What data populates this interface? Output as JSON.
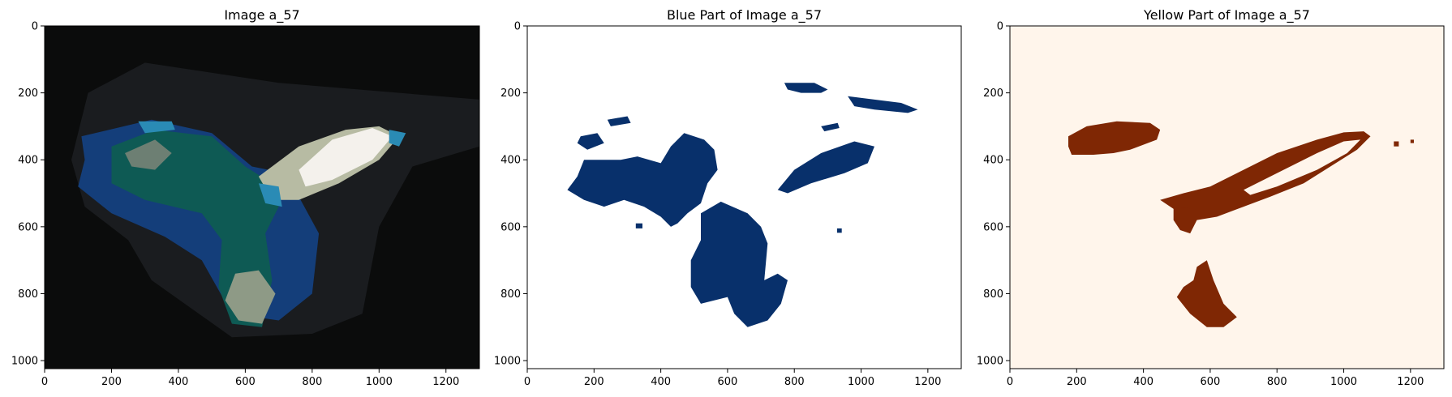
{
  "chart_data": [
    {
      "type": "heatmap",
      "title": "Image a_57",
      "xlim": [
        0,
        1300
      ],
      "ylim": [
        1024,
        0
      ],
      "xticks": [
        0,
        200,
        400,
        600,
        800,
        1000,
        1200
      ],
      "yticks": [
        0,
        200,
        400,
        600,
        800,
        1000
      ],
      "background": "#0b0c0c",
      "regions": [
        {
          "name": "shadow",
          "color": "#1a1c1f",
          "points": [
            [
              130,
              200
            ],
            [
              300,
              110
            ],
            [
              700,
              170
            ],
            [
              1300,
              220
            ],
            [
              1300,
              360
            ],
            [
              1100,
              420
            ],
            [
              1000,
              600
            ],
            [
              950,
              860
            ],
            [
              800,
              920
            ],
            [
              560,
              930
            ],
            [
              320,
              760
            ],
            [
              250,
              640
            ],
            [
              120,
              540
            ],
            [
              80,
              400
            ]
          ]
        },
        {
          "name": "blue",
          "color": "#143e7a",
          "points": [
            [
              110,
              330
            ],
            [
              320,
              280
            ],
            [
              500,
              320
            ],
            [
              620,
              420
            ],
            [
              720,
              440
            ],
            [
              760,
              510
            ],
            [
              820,
              620
            ],
            [
              800,
              800
            ],
            [
              700,
              880
            ],
            [
              560,
              860
            ],
            [
              470,
              700
            ],
            [
              360,
              630
            ],
            [
              200,
              560
            ],
            [
              100,
              480
            ],
            [
              120,
              400
            ]
          ]
        },
        {
          "name": "green-body",
          "color": "#0e5a54",
          "points": [
            [
              200,
              360
            ],
            [
              330,
              310
            ],
            [
              500,
              330
            ],
            [
              600,
              420
            ],
            [
              680,
              470
            ],
            [
              700,
              540
            ],
            [
              660,
              620
            ],
            [
              680,
              760
            ],
            [
              650,
              900
            ],
            [
              560,
              890
            ],
            [
              520,
              780
            ],
            [
              530,
              640
            ],
            [
              470,
              560
            ],
            [
              300,
              520
            ],
            [
              200,
              470
            ]
          ]
        },
        {
          "name": "gray-patch",
          "color": "#6d7f73",
          "points": [
            [
              240,
              380
            ],
            [
              330,
              340
            ],
            [
              380,
              380
            ],
            [
              330,
              430
            ],
            [
              260,
              420
            ]
          ]
        },
        {
          "name": "tan-lower",
          "color": "#8e9a86",
          "points": [
            [
              570,
              740
            ],
            [
              640,
              730
            ],
            [
              690,
              800
            ],
            [
              650,
              890
            ],
            [
              580,
              880
            ],
            [
              540,
              820
            ]
          ]
        },
        {
          "name": "wing-tan",
          "color": "#b7bba3",
          "points": [
            [
              640,
              450
            ],
            [
              760,
              360
            ],
            [
              900,
              310
            ],
            [
              1000,
              300
            ],
            [
              1060,
              330
            ],
            [
              1000,
              400
            ],
            [
              880,
              470
            ],
            [
              760,
              520
            ],
            [
              680,
              520
            ]
          ]
        },
        {
          "name": "wing-white",
          "color": "#f4f1ec",
          "points": [
            [
              760,
              430
            ],
            [
              860,
              340
            ],
            [
              980,
              305
            ],
            [
              1040,
              330
            ],
            [
              980,
              400
            ],
            [
              860,
              460
            ],
            [
              780,
              480
            ]
          ]
        },
        {
          "name": "cyan-tip",
          "color": "#2a8bb5",
          "points": [
            [
              1030,
              310
            ],
            [
              1080,
              320
            ],
            [
              1060,
              360
            ],
            [
              1030,
              350
            ]
          ]
        },
        {
          "name": "cyan-shoulder",
          "color": "#2a8bb5",
          "points": [
            [
              640,
              470
            ],
            [
              700,
              480
            ],
            [
              710,
              540
            ],
            [
              660,
              530
            ]
          ]
        },
        {
          "name": "cyan-top",
          "color": "#2a8bb5",
          "points": [
            [
              280,
              285
            ],
            [
              380,
              285
            ],
            [
              390,
              310
            ],
            [
              300,
              320
            ]
          ]
        }
      ]
    },
    {
      "type": "heatmap",
      "title": "Blue Part of Image a_57",
      "xlim": [
        0,
        1300
      ],
      "ylim": [
        1024,
        0
      ],
      "xticks": [
        0,
        200,
        400,
        600,
        800,
        1000,
        1200
      ],
      "yticks": [
        0,
        200,
        400,
        600,
        800,
        1000
      ],
      "background": "#ffffff",
      "regions": [
        {
          "name": "left-mass",
          "color": "#08306b",
          "points": [
            [
              170,
              400
            ],
            [
              280,
              400
            ],
            [
              330,
              390
            ],
            [
              400,
              410
            ],
            [
              430,
              360
            ],
            [
              470,
              320
            ],
            [
              530,
              340
            ],
            [
              560,
              370
            ],
            [
              570,
              430
            ],
            [
              540,
              470
            ],
            [
              520,
              530
            ],
            [
              480,
              560
            ],
            [
              450,
              590
            ],
            [
              430,
              600
            ],
            [
              400,
              570
            ],
            [
              350,
              540
            ],
            [
              290,
              520
            ],
            [
              230,
              540
            ],
            [
              170,
              520
            ],
            [
              120,
              490
            ],
            [
              150,
              450
            ]
          ]
        },
        {
          "name": "left-small",
          "color": "#08306b",
          "points": [
            [
              160,
              330
            ],
            [
              210,
              320
            ],
            [
              230,
              350
            ],
            [
              180,
              370
            ],
            [
              150,
              350
            ]
          ]
        },
        {
          "name": "top-speck",
          "color": "#08306b",
          "points": [
            [
              240,
              280
            ],
            [
              300,
              270
            ],
            [
              310,
              290
            ],
            [
              250,
              300
            ]
          ]
        },
        {
          "name": "center-mass",
          "color": "#08306b",
          "points": [
            [
              520,
              560
            ],
            [
              580,
              525
            ],
            [
              660,
              560
            ],
            [
              700,
              600
            ],
            [
              720,
              650
            ],
            [
              710,
              760
            ],
            [
              750,
              740
            ],
            [
              780,
              760
            ],
            [
              760,
              830
            ],
            [
              720,
              880
            ],
            [
              660,
              900
            ],
            [
              620,
              860
            ],
            [
              600,
              810
            ],
            [
              520,
              830
            ],
            [
              490,
              780
            ],
            [
              490,
              700
            ],
            [
              520,
              640
            ]
          ]
        },
        {
          "name": "wing-band",
          "color": "#08306b",
          "points": [
            [
              750,
              490
            ],
            [
              800,
              430
            ],
            [
              880,
              380
            ],
            [
              980,
              345
            ],
            [
              1040,
              360
            ],
            [
              1020,
              410
            ],
            [
              950,
              440
            ],
            [
              850,
              470
            ],
            [
              780,
              500
            ]
          ]
        },
        {
          "name": "upper-right",
          "color": "#08306b",
          "points": [
            [
              960,
              210
            ],
            [
              1040,
              220
            ],
            [
              1120,
              230
            ],
            [
              1170,
              250
            ],
            [
              1140,
              260
            ],
            [
              1040,
              250
            ],
            [
              980,
              240
            ]
          ]
        },
        {
          "name": "upper-middle",
          "color": "#08306b",
          "points": [
            [
              770,
              170
            ],
            [
              860,
              170
            ],
            [
              900,
              190
            ],
            [
              880,
              200
            ],
            [
              820,
              200
            ],
            [
              780,
              190
            ]
          ]
        },
        {
          "name": "mid-speck",
          "color": "#08306b",
          "points": [
            [
              880,
              300
            ],
            [
              930,
              290
            ],
            [
              935,
              305
            ],
            [
              890,
              315
            ]
          ]
        },
        {
          "name": "dot-a",
          "color": "#08306b",
          "points": [
            [
              325,
              590
            ],
            [
              345,
              590
            ],
            [
              345,
              605
            ],
            [
              325,
              605
            ]
          ]
        },
        {
          "name": "dot-b",
          "color": "#08306b",
          "points": [
            [
              928,
              605
            ],
            [
              942,
              605
            ],
            [
              942,
              618
            ],
            [
              928,
              618
            ]
          ]
        }
      ]
    },
    {
      "type": "heatmap",
      "title": "Yellow Part of Image a_57",
      "xlim": [
        0,
        1300
      ],
      "ylim": [
        1024,
        0
      ],
      "xticks": [
        0,
        200,
        400,
        600,
        800,
        1000,
        1200
      ],
      "yticks": [
        0,
        200,
        400,
        600,
        800,
        1000
      ],
      "background": "#fff5eb",
      "regions": [
        {
          "name": "left-blob",
          "color": "#7f2704",
          "points": [
            [
              175,
              330
            ],
            [
              230,
              300
            ],
            [
              320,
              285
            ],
            [
              420,
              290
            ],
            [
              450,
              310
            ],
            [
              440,
              340
            ],
            [
              360,
              370
            ],
            [
              310,
              380
            ],
            [
              250,
              385
            ],
            [
              185,
              385
            ],
            [
              175,
              360
            ]
          ]
        },
        {
          "name": "wing-outer",
          "color": "#7f2704",
          "points": [
            [
              450,
              520
            ],
            [
              520,
              500
            ],
            [
              600,
              480
            ],
            [
              680,
              440
            ],
            [
              800,
              380
            ],
            [
              920,
              340
            ],
            [
              1000,
              318
            ],
            [
              1060,
              315
            ],
            [
              1080,
              330
            ],
            [
              1040,
              370
            ],
            [
              960,
              420
            ],
            [
              880,
              470
            ],
            [
              780,
              510
            ],
            [
              700,
              540
            ],
            [
              620,
              570
            ],
            [
              560,
              580
            ],
            [
              510,
              560
            ]
          ]
        },
        {
          "name": "drip",
          "color": "#7f2704",
          "points": [
            [
              490,
              540
            ],
            [
              540,
              545
            ],
            [
              560,
              580
            ],
            [
              540,
              620
            ],
            [
              510,
              610
            ],
            [
              490,
              580
            ]
          ]
        },
        {
          "name": "wing-hole",
          "color": "#fff5eb",
          "points": [
            [
              700,
              490
            ],
            [
              800,
              440
            ],
            [
              920,
              380
            ],
            [
              1000,
              345
            ],
            [
              1050,
              340
            ],
            [
              1010,
              380
            ],
            [
              920,
              430
            ],
            [
              800,
              480
            ],
            [
              720,
              505
            ]
          ]
        },
        {
          "name": "lower-blob",
          "color": "#7f2704",
          "points": [
            [
              560,
              720
            ],
            [
              590,
              700
            ],
            [
              610,
              760
            ],
            [
              640,
              830
            ],
            [
              680,
              870
            ],
            [
              640,
              900
            ],
            [
              590,
              900
            ],
            [
              540,
              860
            ],
            [
              500,
              810
            ],
            [
              520,
              780
            ],
            [
              550,
              760
            ]
          ]
        },
        {
          "name": "speck-1",
          "color": "#7f2704",
          "points": [
            [
              1150,
              345
            ],
            [
              1165,
              345
            ],
            [
              1165,
              360
            ],
            [
              1150,
              360
            ]
          ]
        },
        {
          "name": "speck-2",
          "color": "#7f2704",
          "points": [
            [
              1200,
              340
            ],
            [
              1210,
              340
            ],
            [
              1210,
              350
            ],
            [
              1200,
              350
            ]
          ]
        }
      ]
    }
  ]
}
